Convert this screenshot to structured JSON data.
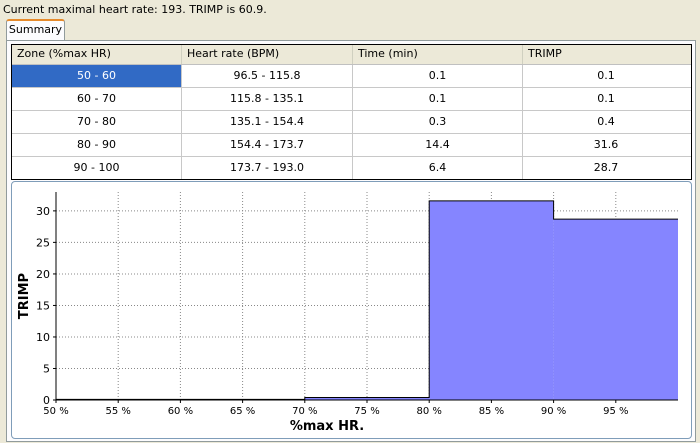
{
  "status_text": "Current maximal heart rate: 193. TRIMP is 60.9.",
  "tab_label": "Summary",
  "table": {
    "headers": [
      "Zone (%max HR)",
      "Heart rate (BPM)",
      "Time (min)",
      "TRIMP"
    ],
    "rows": [
      [
        "50 - 60",
        "96.5 - 115.8",
        "0.1",
        "0.1"
      ],
      [
        "60 - 70",
        "115.8 - 135.1",
        "0.1",
        "0.1"
      ],
      [
        "70 - 80",
        "135.1 - 154.4",
        "0.3",
        "0.4"
      ],
      [
        "80 - 90",
        "154.4 - 173.7",
        "14.4",
        "31.6"
      ],
      [
        "90 - 100",
        "173.7 - 193.0",
        "6.4",
        "28.7"
      ]
    ]
  },
  "chart_data": {
    "type": "area",
    "xlabel": "%max HR.",
    "ylabel": "TRIMP",
    "x_ticks": [
      "50 %",
      "55 %",
      "60 %",
      "65 %",
      "70 %",
      "75 %",
      "80 %",
      "85 %",
      "90 %",
      "95 %"
    ],
    "y_ticks": [
      "0",
      "5",
      "10",
      "15",
      "20",
      "25",
      "30"
    ],
    "xlim": [
      50,
      100
    ],
    "ylim": [
      0,
      33
    ],
    "grid": true,
    "fill_color": "#8585ff",
    "bins": [
      {
        "x0": 50,
        "x1": 60,
        "y": 0.1
      },
      {
        "x0": 60,
        "x1": 70,
        "y": 0.1
      },
      {
        "x0": 70,
        "x1": 80,
        "y": 0.4
      },
      {
        "x0": 80,
        "x1": 90,
        "y": 31.6
      },
      {
        "x0": 90,
        "x1": 100,
        "y": 28.7
      }
    ]
  }
}
